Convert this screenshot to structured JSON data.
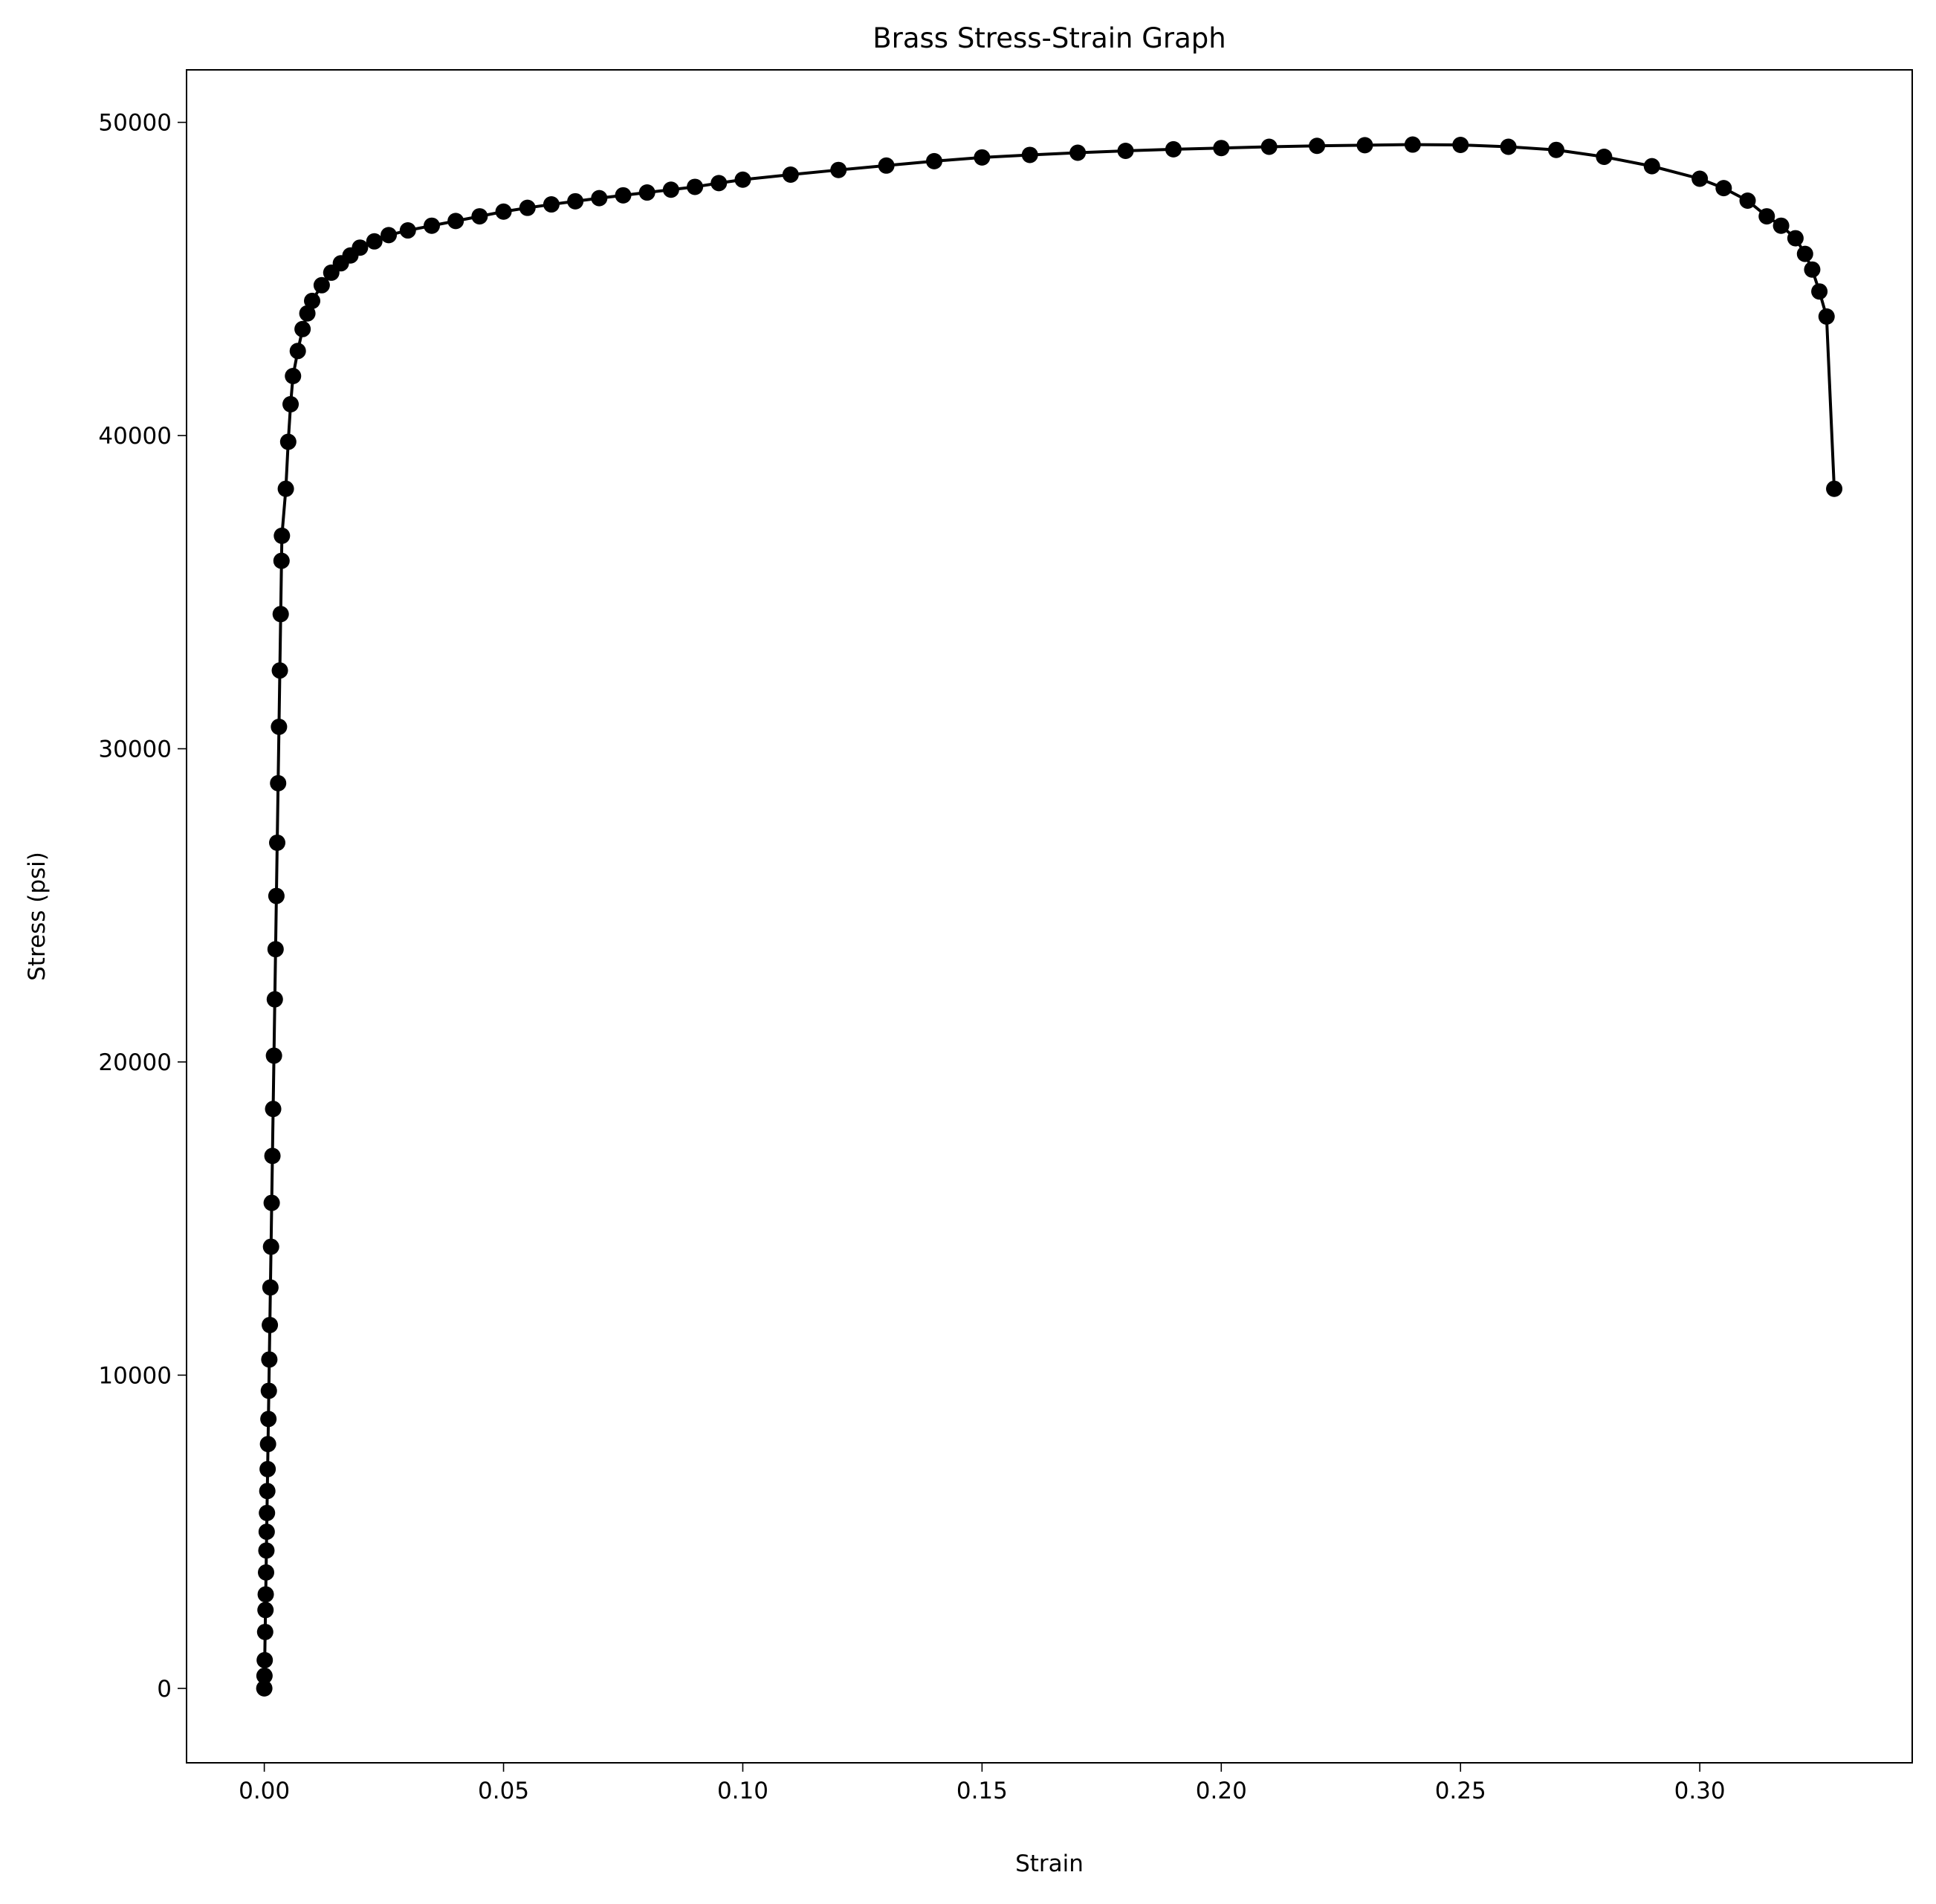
{
  "chart_data": {
    "type": "line",
    "title": "Brass Stress-Strain Graph",
    "xlabel": "Strain",
    "ylabel": "Stress (psi)",
    "x": [
      0,
      4e-05,
      9e-05,
      0.00018,
      0.00025,
      0.0003,
      0.00037,
      0.00044,
      0.0005,
      0.00056,
      0.00063,
      0.0007,
      0.00078,
      0.00086,
      0.00095,
      0.00105,
      0.00116,
      0.00128,
      0.00141,
      0.00155,
      0.0017,
      0.00185,
      0.00202,
      0.0022,
      0.00236,
      0.00253,
      0.0027,
      0.00289,
      0.00307,
      0.00325,
      0.00343,
      0.0036,
      0.00368,
      0.0045,
      0.005,
      0.0055,
      0.006,
      0.007,
      0.008,
      0.009,
      0.01,
      0.012,
      0.014,
      0.016,
      0.018,
      0.02,
      0.023,
      0.026,
      0.03,
      0.035,
      0.04,
      0.045,
      0.05,
      0.055,
      0.06,
      0.065,
      0.07,
      0.075,
      0.08,
      0.085,
      0.09,
      0.095,
      0.1,
      0.11,
      0.12,
      0.13,
      0.14,
      0.15,
      0.16,
      0.17,
      0.18,
      0.19,
      0.2,
      0.21,
      0.22,
      0.23,
      0.24,
      0.25,
      0.26,
      0.27,
      0.28,
      0.29,
      0.3,
      0.305,
      0.31,
      0.314,
      0.317,
      0.32,
      0.322,
      0.3235,
      0.325,
      0.3265,
      0.3281
    ],
    "series": [
      {
        "color": "#000000",
        "values": [
          0,
          400,
          900,
          1800,
          2500,
          3000,
          3700,
          4400,
          5000,
          5600,
          6300,
          7000,
          7800,
          8600,
          9500,
          10500,
          11600,
          12800,
          14100,
          15500,
          17000,
          18500,
          20200,
          22000,
          23600,
          25300,
          27000,
          28900,
          30700,
          32500,
          34300,
          36000,
          36800,
          38300,
          39800,
          41000,
          41900,
          42700,
          43400,
          43900,
          44300,
          44800,
          45200,
          45500,
          45750,
          46000,
          46200,
          46400,
          46550,
          46700,
          46850,
          47000,
          47150,
          47270,
          47380,
          47480,
          47580,
          47670,
          47760,
          47850,
          47940,
          48060,
          48170,
          48330,
          48480,
          48620,
          48760,
          48880,
          48960,
          49030,
          49090,
          49140,
          49180,
          49220,
          49250,
          49270,
          49290,
          49280,
          49220,
          49120,
          48900,
          48600,
          48200,
          47900,
          47500,
          47000,
          46700,
          46300,
          45800,
          45300,
          44600,
          43800,
          38300
        ]
      }
    ],
    "marker": true,
    "xlim": [
      -0.01625,
      0.3444
    ],
    "ylim": [
      -2377,
      51676
    ],
    "xticks": [
      {
        "value": 0,
        "label": "0.00"
      },
      0.05,
      {
        "value": 0.1,
        "label": "0.10"
      },
      0.15,
      {
        "value": 0.2,
        "label": "0.20"
      },
      0.25,
      {
        "value": 0.3,
        "label": "0.30"
      }
    ],
    "yticks": [
      0,
      10000,
      20000,
      30000,
      40000,
      50000
    ]
  }
}
